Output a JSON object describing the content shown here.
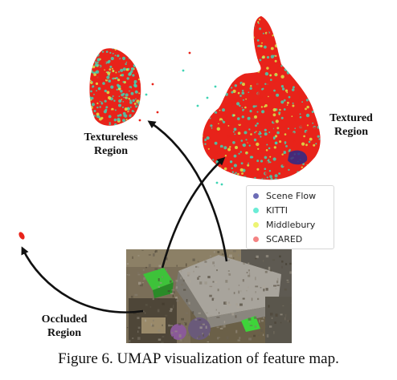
{
  "labels": {
    "textureless": [
      "Textureless",
      "Region"
    ],
    "textured": [
      "Textured",
      "Region"
    ],
    "occluded": [
      "Occluded",
      "Region"
    ]
  },
  "legend": [
    {
      "name": "Scene Flow",
      "color": "#3b3b9e"
    },
    {
      "name": "KITTI",
      "color": "#39e6c8"
    },
    {
      "name": "Middlebury",
      "color": "#eaf25a"
    },
    {
      "name": "SCARED",
      "color": "#f05a5a"
    }
  ],
  "colors": {
    "point_red": "#e8231a",
    "point_cyan": "#3fd4b4",
    "point_yellow": "#d8e84a",
    "point_navy": "#2a2a8a"
  },
  "caption": "Figure 6. UMAP visualization of feature map."
}
